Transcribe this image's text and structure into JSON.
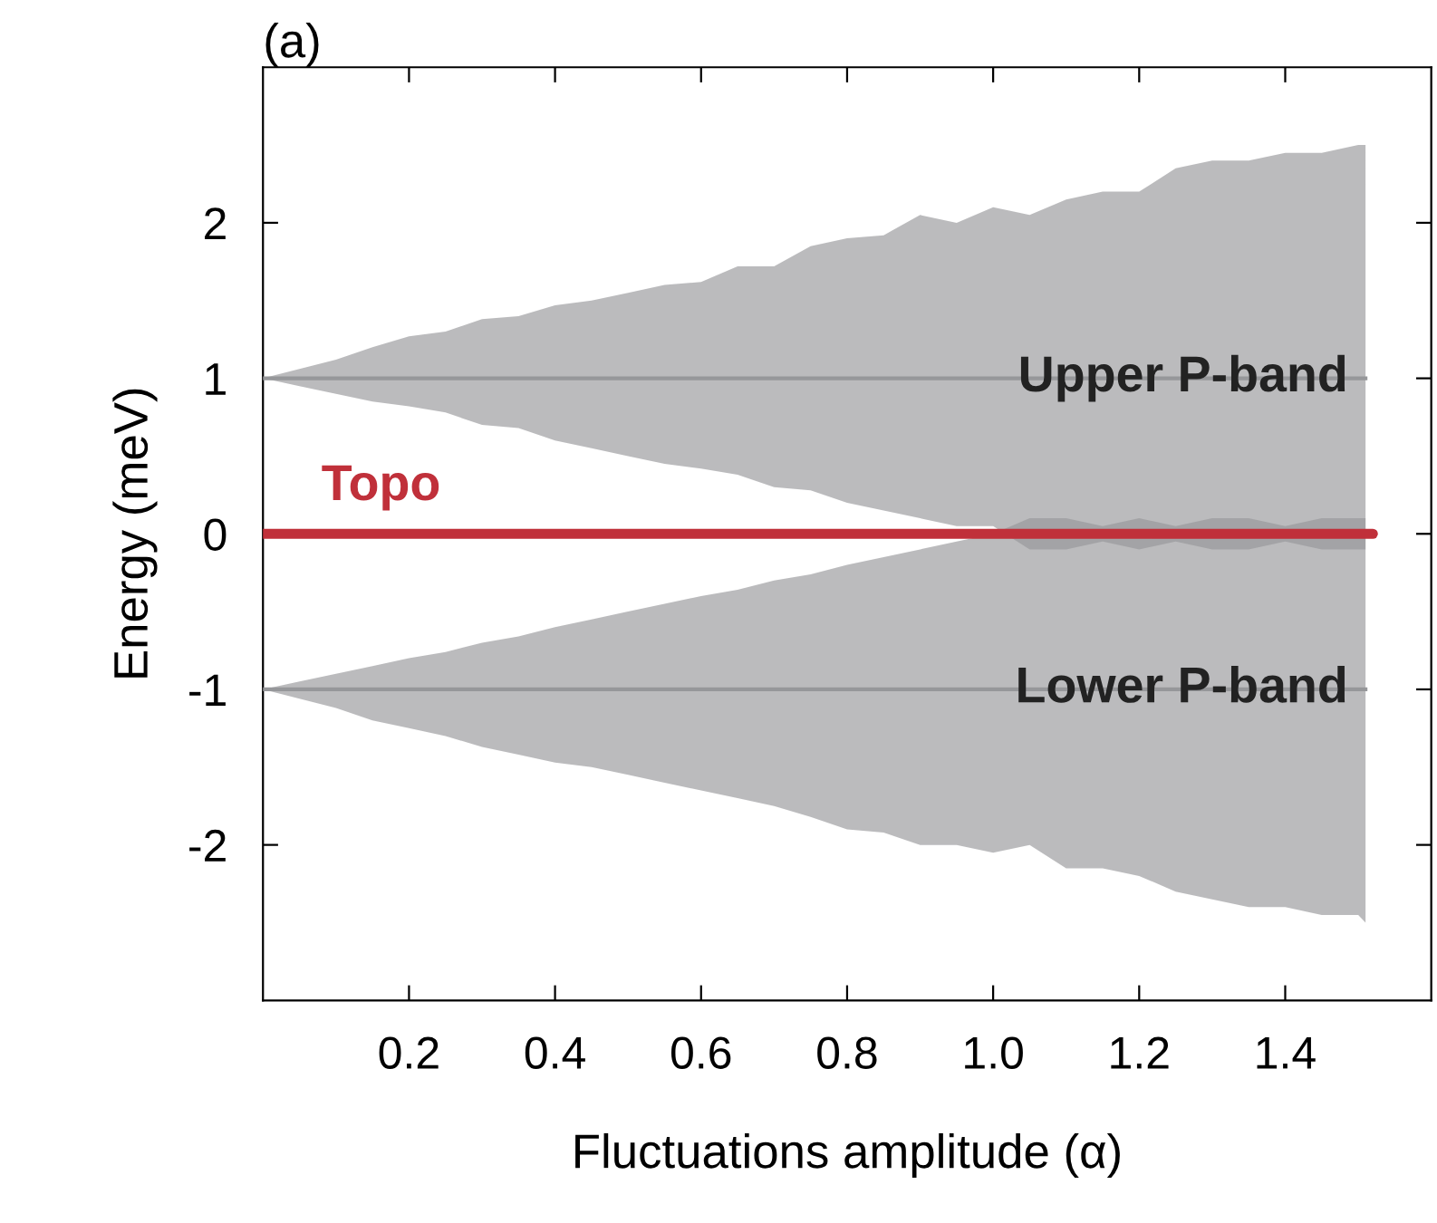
{
  "chart_data": {
    "type": "line",
    "title": "(a)",
    "xlabel": "Fluctuations amplitude (α)",
    "ylabel": "Energy (meV)",
    "xlim": [
      0,
      1.6
    ],
    "ylim": [
      -3,
      3
    ],
    "xticks": [
      0.2,
      0.4,
      0.6,
      0.8,
      {
        "value": 1.0,
        "label": "1.0"
      },
      1.2,
      1.4
    ],
    "yticks": [
      -2,
      -1,
      0,
      1,
      2
    ],
    "x": [
      0,
      0.05,
      0.1,
      0.15,
      0.2,
      0.25,
      0.3,
      0.35,
      0.4,
      0.45,
      0.5,
      0.55,
      0.6,
      0.65,
      0.7,
      0.75,
      0.8,
      0.85,
      0.9,
      0.95,
      1.0,
      1.05,
      1.1,
      1.15,
      1.2,
      1.25,
      1.3,
      1.35,
      1.4,
      1.45,
      1.5,
      1.51
    ],
    "series": [
      {
        "name": "Upper P-band",
        "color": "#96979a",
        "values": [
          1,
          1,
          1,
          1,
          1,
          1,
          1,
          1,
          1,
          1,
          1,
          1,
          1,
          1,
          1,
          1,
          1,
          1,
          1,
          1,
          1,
          1,
          1,
          1,
          1,
          1,
          1,
          1,
          1,
          1,
          1,
          1
        ],
        "upper": [
          1.0,
          1.06,
          1.12,
          1.2,
          1.27,
          1.3,
          1.38,
          1.4,
          1.47,
          1.5,
          1.55,
          1.6,
          1.62,
          1.72,
          1.72,
          1.85,
          1.9,
          1.92,
          2.05,
          2.0,
          2.1,
          2.05,
          2.15,
          2.2,
          2.2,
          2.35,
          2.4,
          2.4,
          2.45,
          2.45,
          2.5,
          2.5
        ],
        "lower": [
          1.0,
          0.95,
          0.9,
          0.85,
          0.82,
          0.78,
          0.7,
          0.68,
          0.6,
          0.55,
          0.5,
          0.45,
          0.42,
          0.38,
          0.3,
          0.28,
          0.2,
          0.15,
          0.1,
          0.05,
          0.05,
          -0.1,
          -0.1,
          -0.05,
          -0.1,
          -0.05,
          -0.1,
          -0.1,
          -0.05,
          -0.1,
          -0.1,
          -0.1
        ]
      },
      {
        "name": "Lower P-band",
        "color": "#96979a",
        "values": [
          -1,
          -1,
          -1,
          -1,
          -1,
          -1,
          -1,
          -1,
          -1,
          -1,
          -1,
          -1,
          -1,
          -1,
          -1,
          -1,
          -1,
          -1,
          -1,
          -1,
          -1,
          -1,
          -1,
          -1,
          -1,
          -1,
          -1,
          -1,
          -1,
          -1,
          -1,
          -1
        ],
        "upper": [
          -1.0,
          -0.95,
          -0.9,
          -0.85,
          -0.8,
          -0.76,
          -0.7,
          -0.66,
          -0.6,
          -0.55,
          -0.5,
          -0.45,
          -0.4,
          -0.36,
          -0.3,
          -0.26,
          -0.2,
          -0.15,
          -0.1,
          -0.05,
          0.0,
          0.1,
          0.1,
          0.05,
          0.1,
          0.05,
          0.1,
          0.1,
          0.05,
          0.1,
          0.1,
          0.1
        ],
        "lower": [
          -1.0,
          -1.06,
          -1.12,
          -1.2,
          -1.25,
          -1.3,
          -1.37,
          -1.42,
          -1.47,
          -1.5,
          -1.55,
          -1.6,
          -1.65,
          -1.7,
          -1.75,
          -1.82,
          -1.9,
          -1.92,
          -2.0,
          -2.0,
          -2.05,
          -2.0,
          -2.15,
          -2.15,
          -2.2,
          -2.3,
          -2.35,
          -2.4,
          -2.4,
          -2.45,
          -2.45,
          -2.5
        ]
      },
      {
        "name": "Topo",
        "color": "#c0303a",
        "x": [
          0,
          1.52
        ],
        "values": [
          0,
          0
        ]
      }
    ]
  }
}
